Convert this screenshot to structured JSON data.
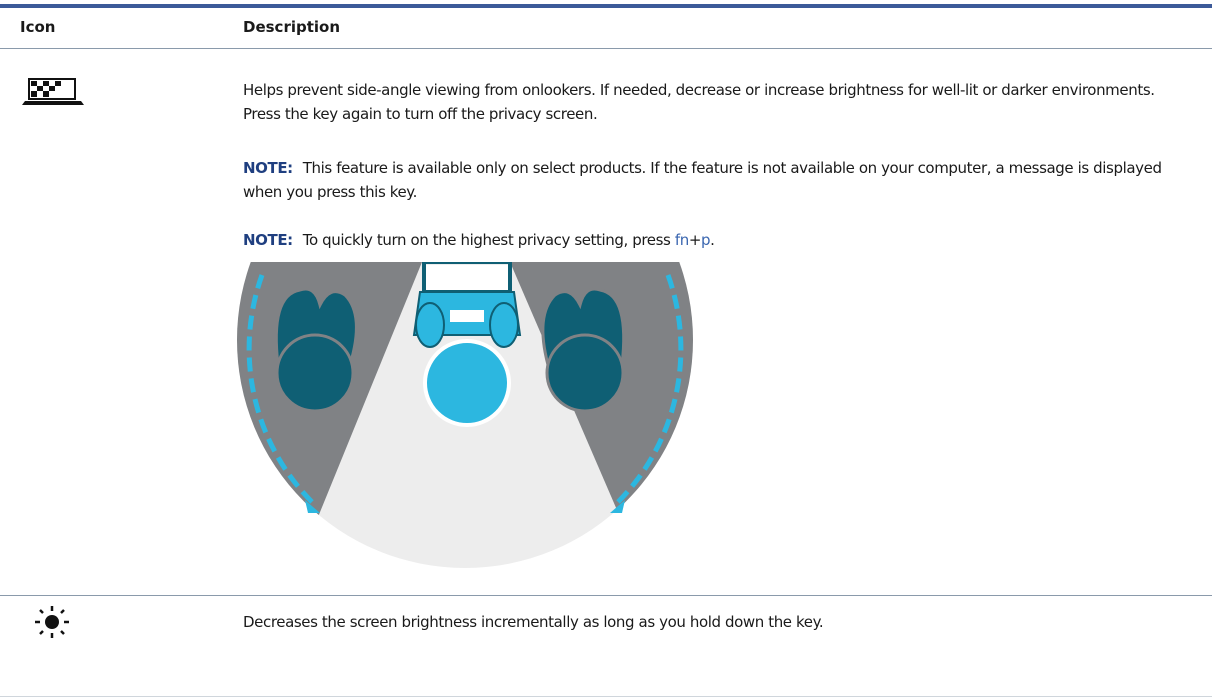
{
  "table": {
    "headers": [
      "Icon",
      "Description"
    ],
    "rows": [
      {
        "description": "Helps prevent side-angle viewing from onlookers. If needed, decrease or increase brightness for well-lit or darker environments. Press the key again to turn off the privacy screen.",
        "notes": [
          {
            "label": "NOTE:",
            "text": "This feature is available only on select products. If the feature is not available on your computer, a message is displayed when you press this key."
          },
          {
            "label": "NOTE:",
            "text_parts": [
              "To quickly turn on the highest privacy setting, press ",
              "fn",
              "+",
              "p",
              "."
            ]
          }
        ]
      },
      {
        "description": "Decreases the screen brightness incrementally as long as you hold down the key."
      }
    ]
  }
}
